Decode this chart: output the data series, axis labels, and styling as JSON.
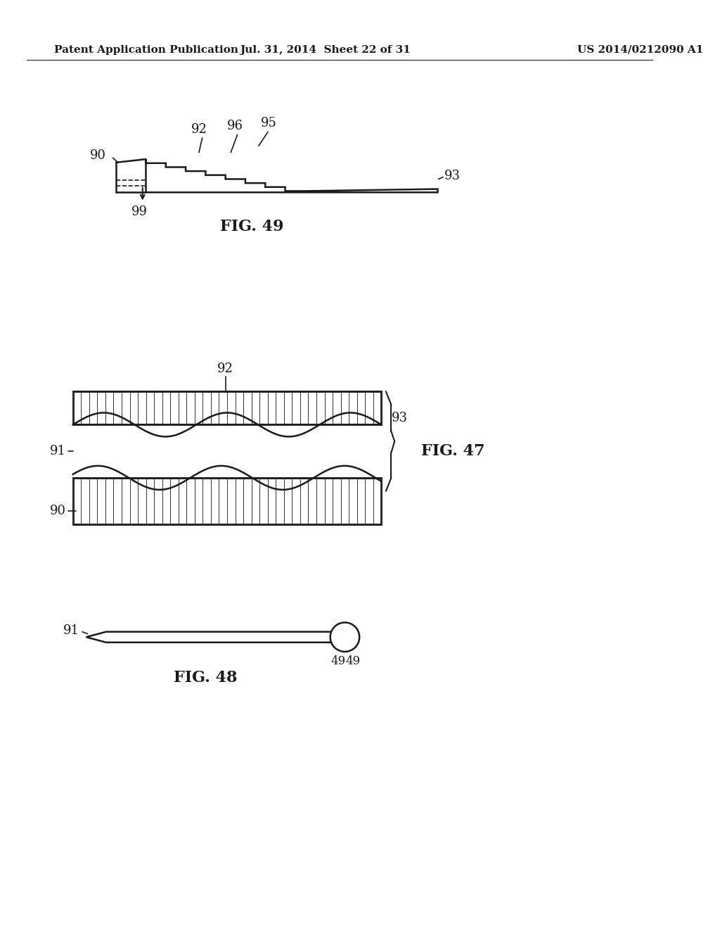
{
  "bg_color": "#ffffff",
  "line_color": "#1a1a1a",
  "header_left": "Patent Application Publication",
  "header_mid": "Jul. 31, 2014  Sheet 22 of 31",
  "header_right": "US 2014/0212090 A1",
  "fig49_caption": "FIG. 49",
  "fig47_caption": "FIG. 47",
  "fig48_caption": "FIG. 48"
}
